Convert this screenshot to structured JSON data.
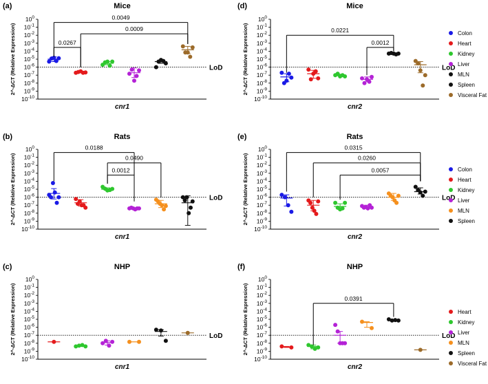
{
  "figure": {
    "ylabel": "2^-ΔCT (Relative Expression)",
    "lod_label": "LoD",
    "tick_labels": [
      "10^0",
      "10^-1",
      "10^-2",
      "10^-3",
      "10^-4",
      "10^-5",
      "10^-6",
      "10^-7",
      "10^-8",
      "10^-9",
      "10^-10"
    ]
  },
  "legends": [
    {
      "items": [
        {
          "name": "Colon",
          "color": "#1a1ae6"
        },
        {
          "name": "Heart",
          "color": "#e41a1c"
        },
        {
          "name": "Kidney",
          "color": "#2ec72e"
        },
        {
          "name": "Liver",
          "color": "#b422d6"
        },
        {
          "name": "MLN",
          "color": "#111111"
        },
        {
          "name": "Spleen",
          "color": "#111111"
        },
        {
          "name": "Visceral Fat",
          "color": "#9c6b2a"
        }
      ]
    },
    {
      "items": [
        {
          "name": "Colon",
          "color": "#1a1ae6"
        },
        {
          "name": "Heart",
          "color": "#e41a1c"
        },
        {
          "name": "Kidney",
          "color": "#2ec72e"
        },
        {
          "name": "Liver",
          "color": "#b422d6"
        },
        {
          "name": "MLN",
          "color": "#f5901e"
        },
        {
          "name": "Spleen",
          "color": "#111111"
        }
      ]
    },
    {
      "items": [
        {
          "name": "Heart",
          "color": "#e41a1c"
        },
        {
          "name": "Kidney",
          "color": "#2ec72e"
        },
        {
          "name": "Liver",
          "color": "#b422d6"
        },
        {
          "name": "MLN",
          "color": "#f5901e"
        },
        {
          "name": "Spleen",
          "color": "#111111"
        },
        {
          "name": "Visceral Fat",
          "color": "#9c6b2a"
        }
      ]
    }
  ],
  "chart_data": [
    {
      "panel": "(a)",
      "title": "Mice",
      "xlabel": "cnr1",
      "type": "scatter",
      "yscale": "log",
      "ylim": [
        1e-10,
        1
      ],
      "lod": 1e-06,
      "series": [
        {
          "name": "Colon",
          "color": "#1a1ae6",
          "points": [
            5e-06,
            1.2e-05,
            1.5e-05,
            6e-06,
            1.3e-05
          ],
          "mean": 1e-05,
          "sd": [
            5e-06,
            2e-05
          ]
        },
        {
          "name": "Heart",
          "color": "#e41a1c",
          "points": [
            2e-07,
            2.5e-07,
            3e-07,
            2e-07,
            2.2e-07
          ],
          "mean": 2.4e-07,
          "sd": [
            2e-07,
            2.8e-07
          ]
        },
        {
          "name": "Kidney",
          "color": "#2ec72e",
          "points": [
            2e-06,
            4e-06,
            5e-06,
            1.5e-06,
            5e-06
          ],
          "mean": 3e-06,
          "sd": [
            2e-06,
            5e-06
          ]
        },
        {
          "name": "Liver",
          "color": "#b422d6",
          "points": [
            1.5e-07,
            5e-07,
            2e-08,
            8e-08,
            4e-07
          ],
          "mean": 2e-07,
          "sd": [
            5e-08,
            8e-07
          ]
        },
        {
          "name": "Spleen",
          "color": "#111111",
          "points": [
            1e-06,
            5e-06,
            8e-06,
            6e-06,
            3e-06
          ],
          "mean": 5e-06,
          "sd": [
            3e-06,
            8e-06
          ]
        },
        {
          "name": "Visceral Fat",
          "color": "#9c6b2a",
          "points": [
            0.0004,
            7e-05,
            7e-05,
            2e-05,
            0.0003
          ],
          "mean": 0.00015,
          "sd": [
            5e-05,
            0.0004
          ]
        }
      ],
      "annotations": [
        {
          "label": "0.0267",
          "from": 0,
          "to": 1,
          "y": 0.0003,
          "drop_from": 2e-05,
          "drop_to": 1e-06
        },
        {
          "label": "0.0009",
          "from": 1,
          "to": 5,
          "y": 0.015,
          "drop_from": 1e-06,
          "drop_to": 0.0008
        },
        {
          "label": "0.0049",
          "from": 0,
          "to": 5,
          "y": 0.4,
          "drop_from": 2e-05,
          "drop_to": 0.0008
        }
      ]
    },
    {
      "panel": "(d)",
      "title": "Mice",
      "xlabel": "cnr2",
      "type": "scatter",
      "yscale": "log",
      "ylim": [
        1e-10,
        1
      ],
      "lod": 1e-06,
      "series": [
        {
          "name": "Colon",
          "color": "#1a1ae6",
          "points": [
            2e-07,
            1e-08,
            2e-08,
            1.5e-07,
            5e-08
          ],
          "mean": 6e-08,
          "sd": [
            1.5e-08,
            1.5e-07
          ]
        },
        {
          "name": "Heart",
          "color": "#e41a1c",
          "points": [
            5e-07,
            3e-08,
            1.5e-07,
            3e-07,
            4e-08
          ],
          "mean": 1.5e-07,
          "sd": [
            4e-08,
            4e-07
          ]
        },
        {
          "name": "Kidney",
          "color": "#2ec72e",
          "points": [
            1e-07,
            1.5e-07,
            7e-08,
            1e-07,
            7e-08
          ],
          "mean": 1e-07,
          "sd": [
            8e-08,
            1.3e-07
          ]
        },
        {
          "name": "Liver",
          "color": "#b422d6",
          "points": [
            4e-08,
            1e-08,
            3e-08,
            1.5e-08,
            6e-08
          ],
          "mean": 3e-08,
          "sd": [
            1.5e-08,
            6e-08
          ]
        },
        {
          "name": "MLN",
          "color": "#111111",
          "points": [
            5e-05,
            6e-05,
            5e-05,
            4e-05,
            5e-05
          ],
          "mean": 5e-05,
          "sd": [
            4.5e-05,
            5.5e-05
          ]
        },
        {
          "name": "Visceral Fat",
          "color": "#9c6b2a",
          "points": [
            6e-06,
            3e-06,
            4e-07,
            5e-09,
            1e-07
          ],
          "mean": 2e-06,
          "sd": [
            2e-07,
            5e-06
          ]
        }
      ],
      "annotations": [
        {
          "label": "0.0221",
          "from": 0,
          "to": 4,
          "y": 0.01,
          "drop_from": 2e-07,
          "drop_to": 0.0001
        },
        {
          "label": "0.0012",
          "from": 3,
          "to": 4,
          "y": 0.0003,
          "drop_from": 1e-07,
          "drop_to": 0.0001
        }
      ]
    },
    {
      "panel": "(b)",
      "title": "Rats",
      "xlabel": "cnr1",
      "type": "scatter",
      "yscale": "log",
      "ylim": [
        1e-10,
        1
      ],
      "lod": 1e-06,
      "series": [
        {
          "name": "Colon",
          "color": "#1a1ae6",
          "points": [
            2e-06,
            1e-06,
            6e-05,
            4e-06,
            2e-07,
            1e-06
          ],
          "mean": 3e-06,
          "sd": [
            6e-07,
            1.2e-05
          ]
        },
        {
          "name": "Heart",
          "color": "#e41a1c",
          "points": [
            6e-07,
            1.5e-07,
            3e-07,
            1e-07,
            1e-07,
            5e-08
          ],
          "mean": 2e-07,
          "sd": [
            8e-08,
            5e-07
          ]
        },
        {
          "name": "Kidney",
          "color": "#2ec72e",
          "points": [
            2e-05,
            1.2e-05,
            7e-06,
            8e-06,
            1.1e-05
          ],
          "mean": 1e-05,
          "sd": [
            7e-06,
            1.5e-05
          ]
        },
        {
          "name": "Liver",
          "color": "#b422d6",
          "points": [
            4e-08,
            5e-08,
            4e-08,
            3e-08,
            4e-08,
            4e-08
          ],
          "mean": 4e-08,
          "sd": [
            3e-08,
            5e-08
          ]
        },
        {
          "name": "MLN",
          "color": "#f5901e",
          "points": [
            5e-07,
            3e-07,
            1.5e-07,
            1e-07,
            3e-08,
            8e-08
          ],
          "mean": 1.5e-07,
          "sd": [
            5e-08,
            4e-07
          ]
        },
        {
          "name": "Spleen",
          "color": "#111111",
          "points": [
            1e-06,
            4e-07,
            1e-06,
            1e-08,
            5e-08,
            3e-07
          ],
          "mean": 2e-07,
          "sd": [
            3e-10,
            1.5e-06
          ]
        }
      ],
      "annotations": [
        {
          "label": "0.0188",
          "from": 0,
          "to": 3,
          "y": 0.4,
          "drop_from": 0.0001,
          "drop_to": 3e-07
        },
        {
          "label": "0.0490",
          "from": 2,
          "to": 4,
          "y": 0.02,
          "drop_from": 5e-05,
          "drop_to": 1e-06
        },
        {
          "label": "0.0012",
          "from": 2,
          "to": 3,
          "y": 0.0006,
          "drop_from": 5e-05,
          "drop_to": 3e-07
        }
      ]
    },
    {
      "panel": "(e)",
      "title": "Rats",
      "xlabel": "cnr2",
      "type": "scatter",
      "yscale": "log",
      "ylim": [
        1e-10,
        1
      ],
      "lod": 1e-06,
      "series": [
        {
          "name": "Colon",
          "color": "#1a1ae6",
          "points": [
            2e-06,
            1e-06,
            1e-07,
            1.5e-08
          ],
          "mean": 8e-07,
          "sd": [
            8e-08,
            2e-06
          ]
        },
        {
          "name": "Heart",
          "color": "#e41a1c",
          "points": [
            4e-07,
            2e-07,
            5e-08,
            2e-08,
            8e-09,
            3e-07
          ],
          "mean": 1e-07,
          "sd": [
            2e-08,
            4e-07
          ]
        },
        {
          "name": "Kidney",
          "color": "#2ec72e",
          "points": [
            2e-07,
            5e-08,
            3e-08,
            4e-08,
            2e-07
          ],
          "mean": 7e-08,
          "sd": [
            3e-08,
            1.5e-07
          ]
        },
        {
          "name": "Liver",
          "color": "#b422d6",
          "points": [
            8e-08,
            5e-08,
            6e-08,
            4e-08,
            1e-07,
            5e-08
          ],
          "mean": 6e-08,
          "sd": [
            4e-08,
            1e-07
          ]
        },
        {
          "name": "MLN",
          "color": "#f5901e",
          "points": [
            3e-06,
            1.5e-06,
            1e-06,
            4e-07,
            2e-07,
            1.5e-06
          ],
          "mean": 1e-06,
          "sd": [
            4e-07,
            3e-06
          ]
        },
        {
          "name": "Spleen",
          "color": "#111111",
          "points": [
            2e-05,
            8e-06,
            4e-06,
            1.5e-06,
            5e-06
          ],
          "mean": 5e-06,
          "sd": [
            2.5e-06,
            1.5e-05
          ]
        }
      ],
      "annotations": [
        {
          "label": "0.0315",
          "from": 0,
          "to": 5,
          "y": 0.4,
          "drop_from": 5e-06,
          "drop_to": 0.0001
        },
        {
          "label": "0.0260",
          "from": 1,
          "to": 5,
          "y": 0.02,
          "drop_from": 1e-06,
          "drop_to": 0.0001
        },
        {
          "label": "0.0057",
          "from": 2,
          "to": 5,
          "y": 0.0006,
          "drop_from": 5e-07,
          "drop_to": 0.0001
        }
      ]
    },
    {
      "panel": "(c)",
      "title": "NHP",
      "xlabel": "cnr1",
      "type": "scatter",
      "yscale": "log",
      "ylim": [
        1e-10,
        1
      ],
      "lod": 1e-07,
      "series": [
        {
          "name": "Heart",
          "color": "#e41a1c",
          "points": [
            1.5e-08
          ],
          "mean": 1.5e-08,
          "sd": [
            1.5e-08,
            1.5e-08
          ]
        },
        {
          "name": "Kidney",
          "color": "#2ec72e",
          "points": [
            4e-09,
            5e-09,
            6e-09,
            4e-09
          ],
          "mean": 5e-09,
          "sd": [
            4e-09,
            6e-09
          ]
        },
        {
          "name": "Liver",
          "color": "#b422d6",
          "points": [
            1e-08,
            2e-08,
            5e-09,
            1.5e-08
          ],
          "mean": 1.2e-08,
          "sd": [
            6e-09,
            2e-08
          ]
        },
        {
          "name": "MLN",
          "color": "#f5901e",
          "points": [
            1.5e-08,
            1.5e-08
          ],
          "mean": 1.5e-08,
          "sd": [
            1.5e-08,
            1.5e-08
          ]
        },
        {
          "name": "Spleen",
          "color": "#111111",
          "points": [
            5e-07,
            4e-07,
            2e-08
          ],
          "mean": 3e-07,
          "sd": [
            8e-08,
            5e-07
          ]
        },
        {
          "name": "Visceral Fat",
          "color": "#9c6b2a",
          "points": [
            2e-07
          ],
          "mean": 2e-07,
          "sd": [
            2e-07,
            2e-07
          ]
        }
      ],
      "annotations": []
    },
    {
      "panel": "(f)",
      "title": "NHP",
      "xlabel": "cnr2",
      "type": "scatter",
      "yscale": "log",
      "ylim": [
        1e-10,
        1
      ],
      "lod": 1e-07,
      "series": [
        {
          "name": "Heart",
          "color": "#e41a1c",
          "points": [
            4e-09,
            3e-09
          ],
          "mean": 3.5e-09,
          "sd": [
            3e-09,
            4e-09
          ]
        },
        {
          "name": "Kidney",
          "color": "#2ec72e",
          "points": [
            6e-09,
            4e-09,
            2e-09,
            3e-09
          ],
          "mean": 4e-09,
          "sd": [
            2e-09,
            6e-09
          ]
        },
        {
          "name": "Liver",
          "color": "#b422d6",
          "points": [
            2e-06,
            3e-07,
            1e-08,
            1e-08,
            1e-08
          ],
          "mean": 1e-07,
          "sd": [
            1e-08,
            3e-07
          ]
        },
        {
          "name": "MLN",
          "color": "#f5901e",
          "points": [
            5e-06,
            8e-07
          ],
          "mean": 4e-06,
          "sd": [
            1e-06,
            5e-06
          ]
        },
        {
          "name": "Spleen",
          "color": "#111111",
          "points": [
            1e-05,
            7e-06,
            8e-06,
            7e-06
          ],
          "mean": 8e-06,
          "sd": [
            7e-06,
            1e-05
          ]
        },
        {
          "name": "Visceral Fat",
          "color": "#9c6b2a",
          "points": [
            1.5e-09
          ],
          "mean": 1.5e-09,
          "sd": [
            1.5e-09,
            1.5e-09
          ]
        }
      ],
      "annotations": [
        {
          "label": "0.0391",
          "from": 1,
          "to": 4,
          "y": 0.001,
          "drop_from": 6e-09,
          "drop_to": 2e-05
        }
      ]
    }
  ]
}
